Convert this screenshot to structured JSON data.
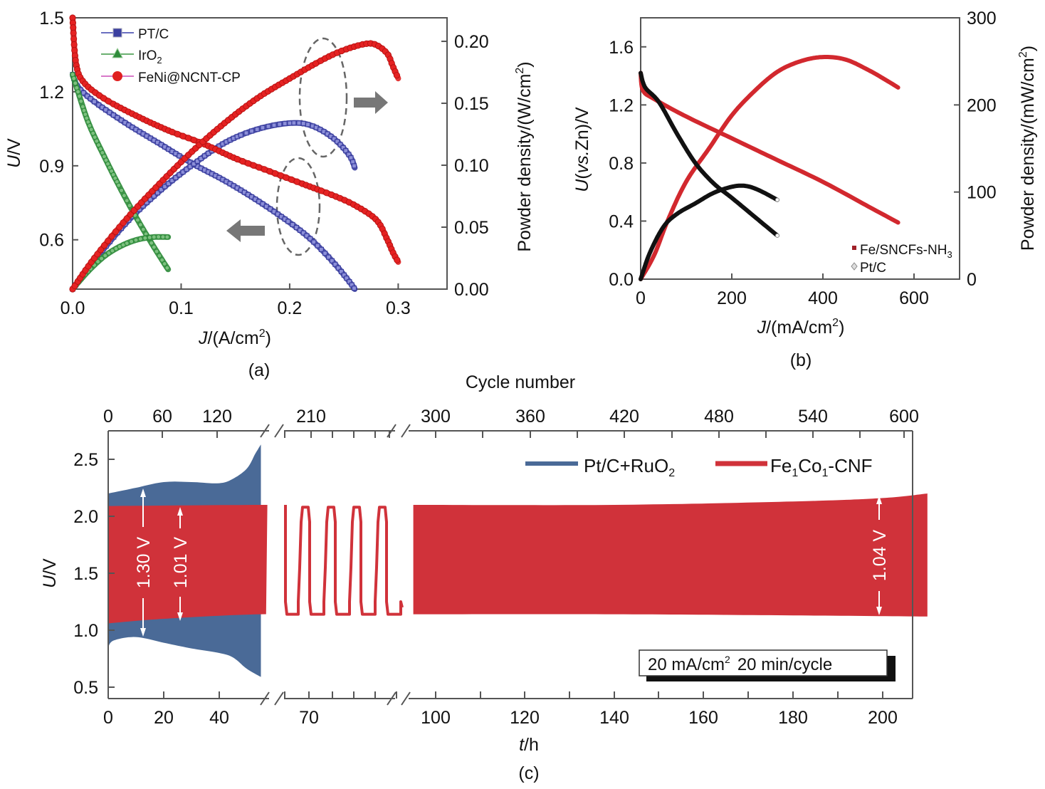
{
  "chart_data": [
    {
      "panel": "(a)",
      "type": "line",
      "xlabel": "J/(A/cm²)",
      "ylabel": "U/V",
      "y2label": "Powder density/(W/cm²)",
      "xlim": [
        0.0,
        0.345
      ],
      "ylim": [
        0.4,
        1.5
      ],
      "y2lim": [
        0.0,
        0.219
      ],
      "xticks": [
        "0.0",
        "0.1",
        "0.2",
        "0.3"
      ],
      "xtick_values": [
        0.0,
        0.1,
        0.2,
        0.3
      ],
      "yticks": [
        "1.5",
        "1.2",
        "0.9",
        "0.6"
      ],
      "ytick_values": [
        1.5,
        1.2,
        0.9,
        0.6
      ],
      "y2ticks": [
        "0.20",
        "0.15",
        "0.10",
        "0.05",
        "0.00"
      ],
      "y2tick_values": [
        0.2,
        0.15,
        0.1,
        0.05,
        0.0
      ],
      "legend_position": "top-left",
      "legend": [
        {
          "label": "PT/C",
          "marker": "square",
          "color": "#3b3fa0"
        },
        {
          "label": "IrO",
          "sub": "2",
          "marker": "triangle",
          "color": "#2e8b3a"
        },
        {
          "label": "FeNi@NCNT-CP",
          "marker": "circle",
          "color": "#e02020"
        }
      ],
      "series": [
        {
          "name": "PT/C polarization",
          "axis": "left",
          "color": "#3b3fa0",
          "marker": "square",
          "x": [
            0.0,
            0.005,
            0.02,
            0.05,
            0.08,
            0.11,
            0.14,
            0.17,
            0.2,
            0.22,
            0.24,
            0.255,
            0.26
          ],
          "y": [
            1.27,
            1.22,
            1.16,
            1.07,
            0.99,
            0.91,
            0.84,
            0.76,
            0.67,
            0.6,
            0.51,
            0.43,
            0.4
          ]
        },
        {
          "name": "PT/C power",
          "axis": "right",
          "color": "#3b3fa0",
          "marker": "square",
          "x": [
            0.0,
            0.02,
            0.05,
            0.08,
            0.11,
            0.14,
            0.17,
            0.2,
            0.22,
            0.24,
            0.255,
            0.26
          ],
          "y": [
            0.0,
            0.023,
            0.054,
            0.079,
            0.1,
            0.118,
            0.129,
            0.134,
            0.132,
            0.122,
            0.108,
            0.098
          ]
        },
        {
          "name": "IrO2 polarization",
          "axis": "left",
          "color": "#2e8b3a",
          "marker": "triangle",
          "x": [
            0.0,
            0.005,
            0.015,
            0.03,
            0.045,
            0.06,
            0.075,
            0.088
          ],
          "y": [
            1.27,
            1.2,
            1.07,
            0.93,
            0.8,
            0.68,
            0.57,
            0.48
          ]
        },
        {
          "name": "IrO2 power",
          "axis": "right",
          "color": "#2e8b3a",
          "marker": "triangle",
          "x": [
            0.0,
            0.015,
            0.03,
            0.045,
            0.06,
            0.075,
            0.088
          ],
          "y": [
            0.0,
            0.015,
            0.027,
            0.035,
            0.04,
            0.042,
            0.042
          ]
        },
        {
          "name": "FeNi@NCNT-CP polarization",
          "axis": "left",
          "color": "#e02020",
          "marker": "circle",
          "x": [
            0.0,
            0.003,
            0.01,
            0.03,
            0.06,
            0.09,
            0.12,
            0.15,
            0.18,
            0.21,
            0.24,
            0.26,
            0.28,
            0.29,
            0.295,
            0.3
          ],
          "y": [
            1.5,
            1.32,
            1.24,
            1.17,
            1.1,
            1.04,
            0.99,
            0.93,
            0.88,
            0.83,
            0.78,
            0.74,
            0.68,
            0.6,
            0.55,
            0.51
          ]
        },
        {
          "name": "FeNi@NCNT-CP power",
          "axis": "right",
          "color": "#e02020",
          "marker": "circle",
          "x": [
            0.0,
            0.02,
            0.05,
            0.08,
            0.11,
            0.14,
            0.17,
            0.2,
            0.23,
            0.25,
            0.27,
            0.28,
            0.29,
            0.295,
            0.3
          ],
          "y": [
            0.0,
            0.025,
            0.057,
            0.085,
            0.111,
            0.134,
            0.154,
            0.17,
            0.185,
            0.193,
            0.198,
            0.197,
            0.19,
            0.18,
            0.17
          ]
        }
      ],
      "annotations": [
        {
          "type": "dashed-ellipse",
          "target": "power curves",
          "arrow": "right"
        },
        {
          "type": "dashed-ellipse",
          "target": "polarization curves",
          "arrow": "left"
        }
      ]
    },
    {
      "panel": "(b)",
      "type": "line",
      "xlabel": "J/(mA/cm²)",
      "ylabel": "U(vs.Zn)/V",
      "y2label": "Powder density/(mW/cm²)",
      "xlim": [
        0,
        700
      ],
      "ylim": [
        0.0,
        1.8
      ],
      "y2lim": [
        0,
        300
      ],
      "xticks": [
        "0",
        "200",
        "400",
        "600"
      ],
      "xtick_values": [
        0,
        200,
        400,
        600
      ],
      "yticks": [
        "1.6",
        "1.2",
        "0.8",
        "0.4",
        "0.0"
      ],
      "ytick_values": [
        1.6,
        1.2,
        0.8,
        0.4,
        0.0
      ],
      "y2ticks": [
        "300",
        "200",
        "100",
        "0"
      ],
      "y2tick_values": [
        300,
        200,
        100,
        0
      ],
      "legend_position": "bottom-right",
      "legend": [
        {
          "label": "Fe/SNCFs-NH",
          "sub": "3",
          "marker": "square",
          "color": "#c0282e"
        },
        {
          "label": "Pt/C",
          "marker": "diamond",
          "color": "#999999"
        }
      ],
      "series": [
        {
          "name": "Fe/SNCFs-NH3 polarization",
          "axis": "left",
          "color": "#d2282e",
          "x": [
            0,
            5,
            30,
            100,
            200,
            300,
            400,
            500,
            565
          ],
          "y": [
            1.42,
            1.3,
            1.24,
            1.12,
            0.97,
            0.82,
            0.67,
            0.5,
            0.39
          ]
        },
        {
          "name": "Fe/SNCFs-NH3 power",
          "axis": "right",
          "color": "#d2282e",
          "x": [
            0,
            30,
            60,
            100,
            150,
            200,
            250,
            300,
            350,
            400,
            450,
            500,
            540,
            565
          ],
          "y": [
            0,
            28,
            68,
            112,
            150,
            188,
            216,
            238,
            250,
            255,
            252,
            240,
            228,
            220
          ]
        },
        {
          "name": "Pt/C polarization",
          "axis": "left",
          "color": "#111111",
          "x": [
            0,
            10,
            40,
            80,
            120,
            160,
            200,
            250,
            300
          ],
          "y": [
            1.42,
            1.32,
            1.22,
            1.0,
            0.8,
            0.66,
            0.56,
            0.43,
            0.3
          ]
        },
        {
          "name": "Pt/C power",
          "axis": "right",
          "color": "#111111",
          "x": [
            0,
            20,
            50,
            80,
            120,
            160,
            200,
            230,
            260,
            300
          ],
          "y": [
            0,
            30,
            60,
            75,
            87,
            99,
            106,
            107,
            102,
            91
          ]
        }
      ]
    },
    {
      "panel": "(c)",
      "type": "area",
      "xlabel": "t/h",
      "ylabel": "U/V",
      "x2label": "Cycle number",
      "ylim": [
        0.4,
        2.75
      ],
      "yticks": [
        "2.5",
        "2.0",
        "1.5",
        "1.0",
        "0.5"
      ],
      "ytick_values": [
        2.5,
        2.0,
        1.5,
        1.0,
        0.5
      ],
      "xticks": [
        "0",
        "20",
        "40",
        "70",
        "100",
        "120",
        "140",
        "160",
        "180",
        "200"
      ],
      "x2ticks": [
        "0",
        "60",
        "120",
        "210",
        "300",
        "360",
        "420",
        "480",
        "540",
        "600"
      ],
      "axis_breaks": [
        "between 55 h and 65 h",
        "between 88 h and 95 h"
      ],
      "legend_position": "top-right",
      "legend": [
        {
          "label": "Pt/C+RuO",
          "sub": "2",
          "color": "#4a6a97"
        },
        {
          "label": "Fe",
          "label_parts": [
            "Fe",
            "1",
            "Co",
            "1",
            "-CNF"
          ],
          "color": "#d0323a"
        }
      ],
      "series": [
        {
          "name": "Pt/C+RuO2 charge (upper envelope)",
          "color": "#4a6a97",
          "x": [
            0,
            10,
            20,
            30,
            40,
            45,
            50,
            53,
            55
          ],
          "y": [
            2.2,
            2.25,
            2.3,
            2.3,
            2.29,
            2.33,
            2.42,
            2.55,
            2.63
          ]
        },
        {
          "name": "Pt/C+RuO2 discharge (lower envelope)",
          "color": "#4a6a97",
          "x": [
            0,
            2,
            10,
            20,
            30,
            40,
            45,
            50,
            55
          ],
          "y": [
            0.85,
            0.91,
            0.94,
            0.89,
            0.84,
            0.8,
            0.76,
            0.66,
            0.59
          ]
        },
        {
          "name": "Fe1Co1-CNF charge (upper envelope)",
          "color": "#d0323a",
          "x": [
            0,
            55,
            95,
            140,
            180,
            200,
            210
          ],
          "y": [
            2.09,
            2.1,
            2.1,
            2.1,
            2.13,
            2.16,
            2.2
          ]
        },
        {
          "name": "Fe1Co1-CNF discharge (lower envelope)",
          "color": "#d0323a",
          "x": [
            0,
            20,
            55,
            95,
            140,
            180,
            210
          ],
          "y": [
            1.06,
            1.1,
            1.14,
            1.14,
            1.14,
            1.13,
            1.12
          ]
        }
      ],
      "annotations": [
        {
          "text": "1.30 V",
          "color": "#ffffff",
          "orientation": "vertical"
        },
        {
          "text": "1.01 V",
          "color": "#ffffff",
          "orientation": "vertical"
        },
        {
          "text": "1.04 V",
          "color": "#ffffff",
          "orientation": "vertical"
        },
        {
          "text": "20 mA/cm² 20 min/cycle",
          "text_parts": [
            "20 mA/cm",
            "2",
            "  20 min/cycle"
          ],
          "box": true
        }
      ]
    }
  ],
  "labels": {
    "panel_a": "(a)",
    "panel_b": "(b)",
    "panel_c": "(c)",
    "a_xlabel_main": "J",
    "a_xlabel_rest": "/(A/cm",
    "a_xlabel_sup": "2",
    "a_xlabel_close": ")",
    "a_ylabel": "U/V",
    "a_y2label": "Powder density/(W/cm",
    "a_y2label_sup": "2",
    "a_y2label_close": ")",
    "b_xlabel_main": "J",
    "b_xlabel_rest": "/(mA/cm",
    "b_xlabel_sup": "2",
    "b_xlabel_close": ")",
    "b_ylabel_u": "U",
    "b_ylabel_paren_open": "(",
    "b_ylabel_vs": "vs.",
    "b_ylabel_rest": "Zn)/V",
    "b_y2label": "Powder density/(mW/cm",
    "b_y2label_sup": "2",
    "b_y2label_close": ")",
    "c_xlabel_t": "t",
    "c_xlabel_rest": "/h",
    "c_x2label": "Cycle number",
    "c_ylabel": "U/V",
    "c_note_1": "20 mA/cm",
    "c_note_sup": "2",
    "c_note_2": "20 min/cycle",
    "c_ann_130": "1.30 V",
    "c_ann_101": "1.01 V",
    "c_ann_104": "1.04 V",
    "c_leg1": "Pt/C+RuO",
    "c_leg1_sub": "2",
    "c_leg2_fe": "Fe",
    "c_leg2_sub1": "1",
    "c_leg2_co": "Co",
    "c_leg2_sub2": "1",
    "c_leg2_rest": "-CNF"
  }
}
